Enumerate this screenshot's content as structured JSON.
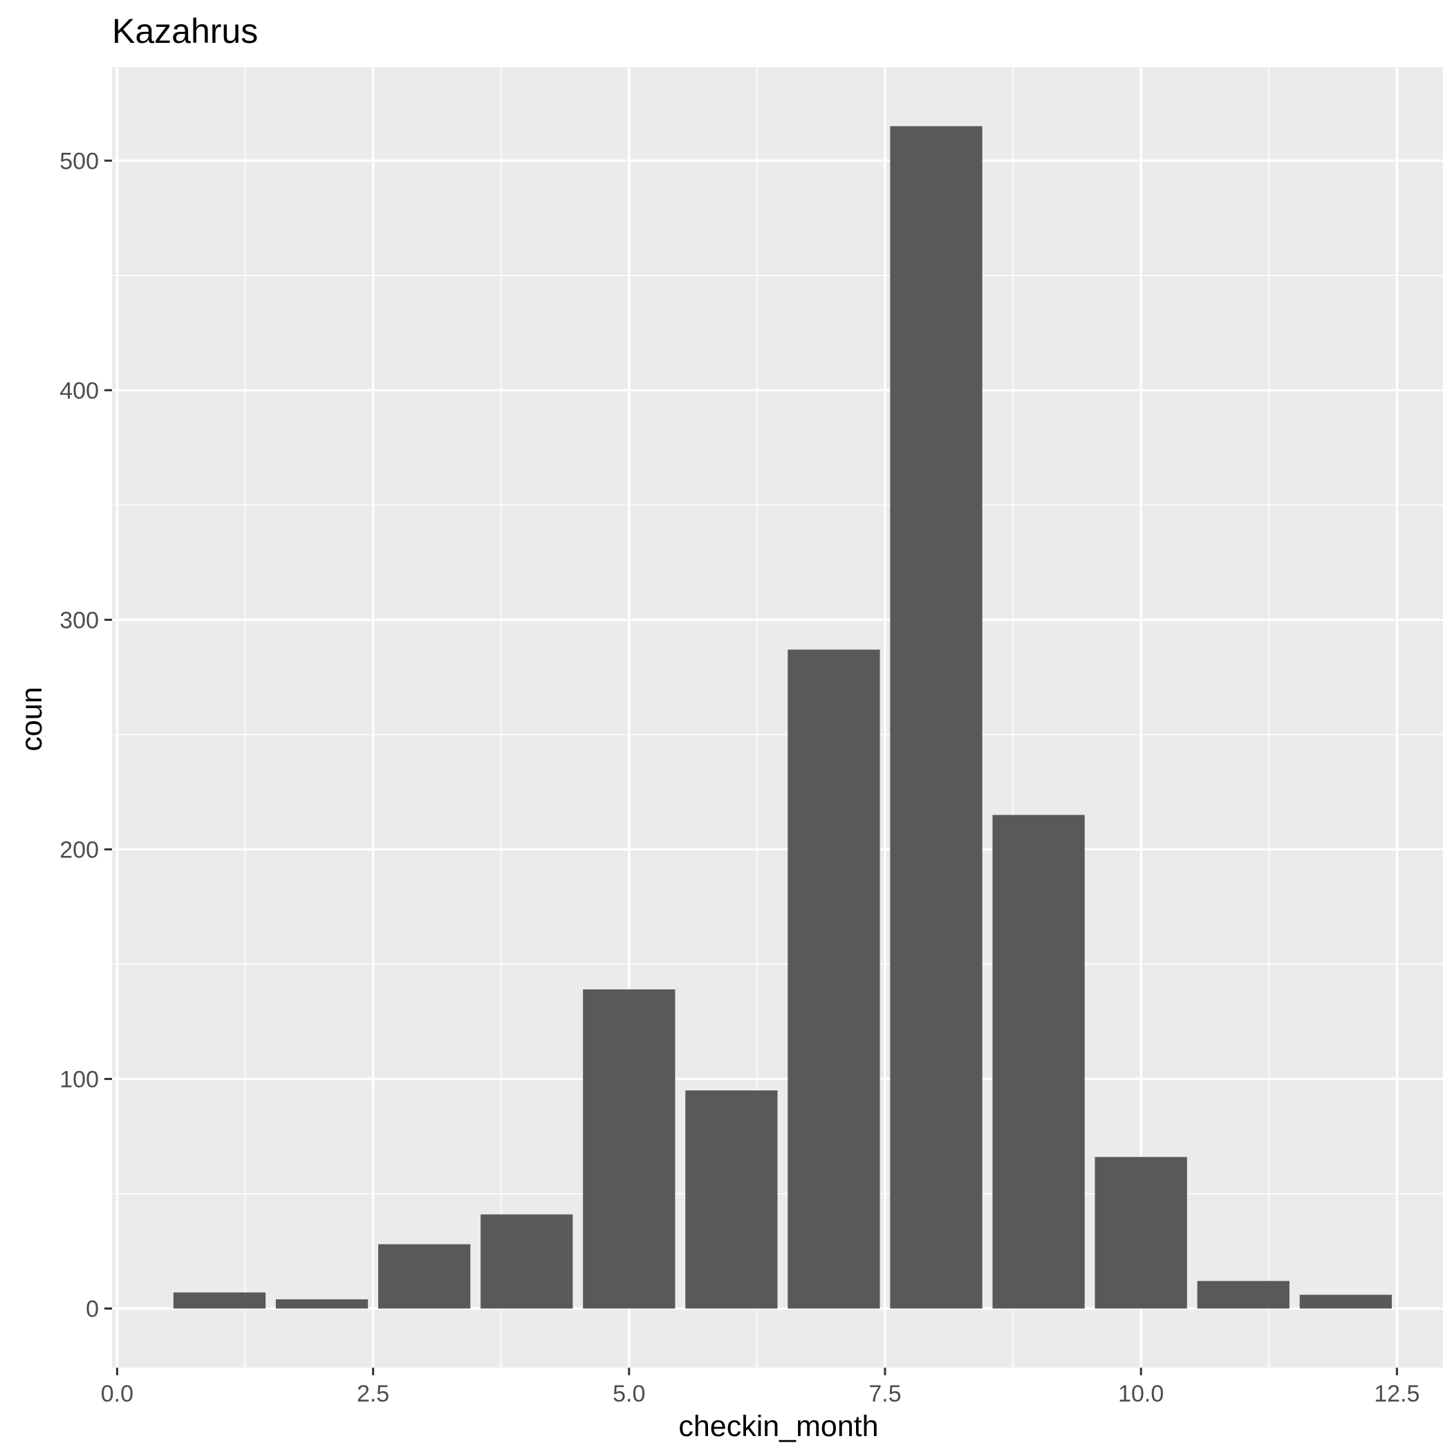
{
  "chart_data": {
    "type": "bar",
    "title": "Kazahrus",
    "xlabel": "checkin_month",
    "ylabel": "coun",
    "x": [
      1,
      2,
      3,
      4,
      5,
      6,
      7,
      8,
      9,
      10,
      11,
      12
    ],
    "values": [
      7,
      4,
      28,
      41,
      139,
      95,
      287,
      515,
      215,
      66,
      12,
      6
    ],
    "xlim": [
      -0.05,
      12.95
    ],
    "ylim": [
      -25.75,
      540.75
    ],
    "xticks": [
      0,
      2.5,
      5,
      7.5,
      10,
      12.5
    ],
    "xtick_labels": [
      "0.0",
      "2.5",
      "5.0",
      "7.5",
      "10.0",
      "12.5"
    ],
    "yticks": [
      0,
      100,
      200,
      300,
      400,
      500
    ],
    "ytick_labels": [
      "0",
      "100",
      "200",
      "300",
      "400",
      "500"
    ],
    "grid": true,
    "bar_color": "#595959",
    "panel_color": "#ebebeb"
  }
}
